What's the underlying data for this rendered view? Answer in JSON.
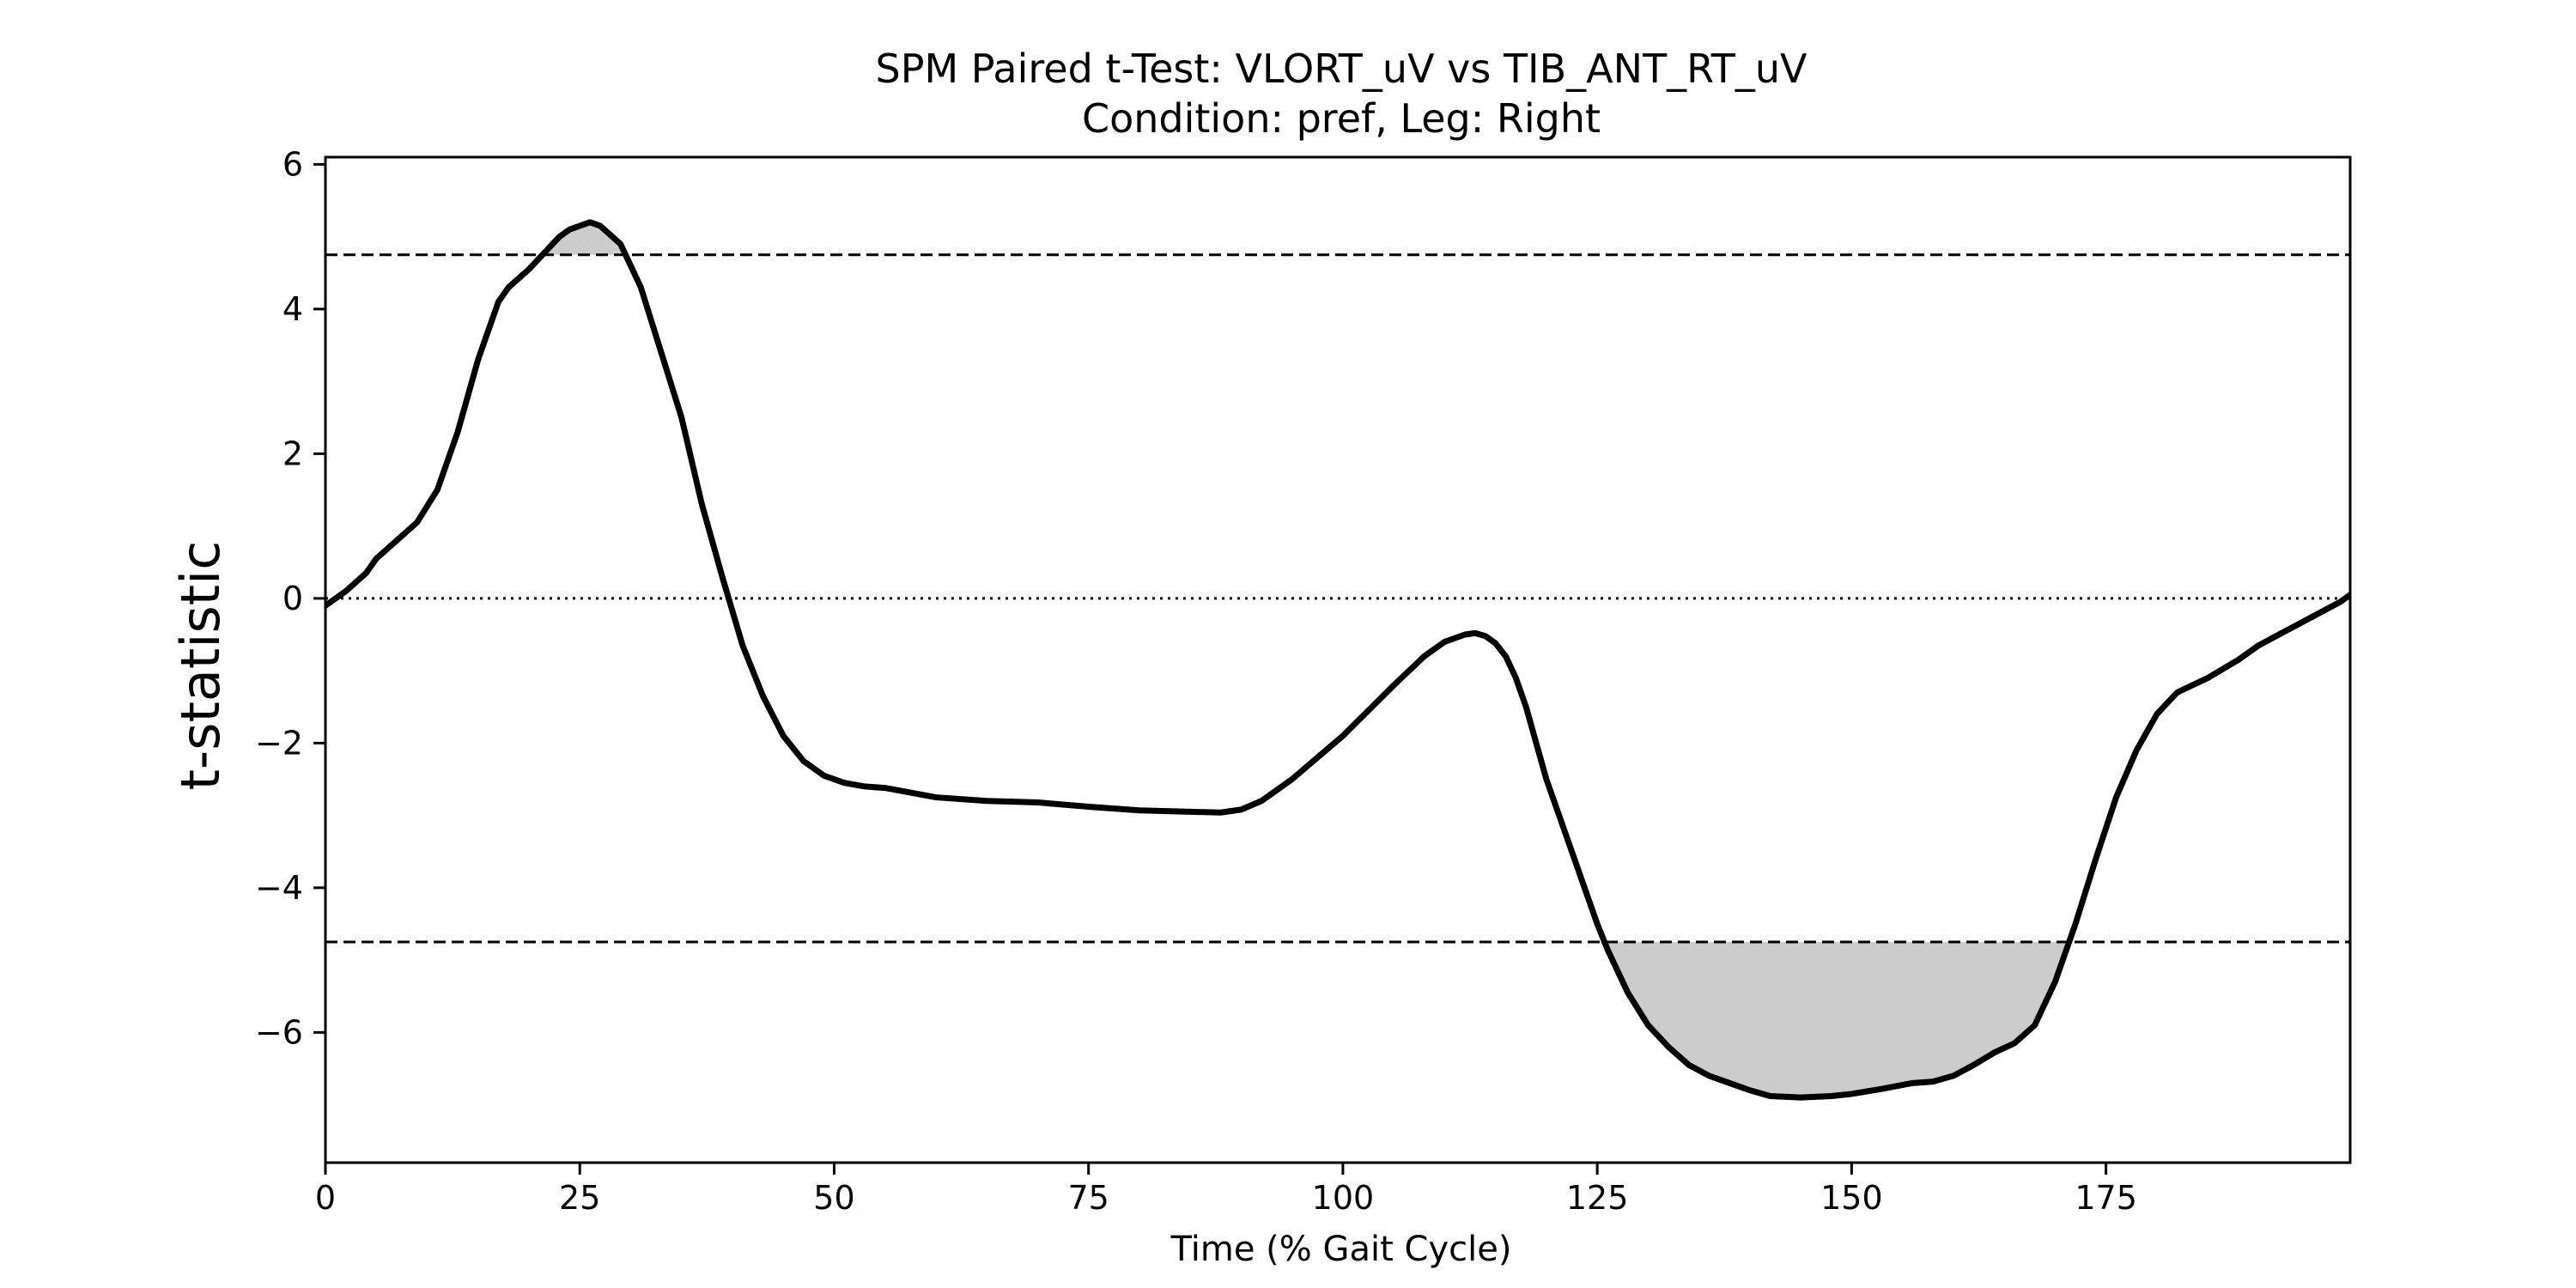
{
  "chart_data": {
    "type": "line",
    "title": "SPM Paired t-Test: VLORT_uV vs TIB_ANT_RT_uV",
    "subtitle": "Condition: pref, Leg: Right",
    "xlabel": "Time (% Gait Cycle)",
    "ylabel": "t-statistic",
    "xlim": [
      0,
      199
    ],
    "ylim": [
      -7.8,
      6.1
    ],
    "xticks": [
      0,
      25,
      50,
      75,
      100,
      125,
      150,
      175
    ],
    "xtick_labels": [
      "0",
      "25",
      "50",
      "75",
      "100",
      "125",
      "150",
      "175"
    ],
    "yticks": [
      6,
      4,
      2,
      0,
      -2,
      -4,
      -6
    ],
    "ytick_labels": [
      "6",
      "4",
      "2",
      "0",
      "−2",
      "−4",
      "−6"
    ],
    "grid": false,
    "threshold": 4.75,
    "zero_line": 0,
    "series_color": "#000000",
    "fill_color": "#cccccc",
    "series": [
      {
        "x": [
          0,
          2,
          4,
          5,
          7,
          9,
          11,
          13,
          15,
          17,
          18,
          20,
          21,
          23,
          24,
          26,
          27,
          29,
          31,
          33,
          35,
          37,
          39,
          41,
          43,
          45,
          47,
          49,
          51,
          53,
          55,
          60,
          65,
          70,
          75,
          80,
          85,
          88,
          90,
          92,
          95,
          100,
          105,
          108,
          110,
          112,
          113,
          114,
          115,
          116,
          117,
          118,
          119,
          120,
          122,
          124,
          125,
          126,
          128,
          130,
          132,
          134,
          136,
          138,
          140,
          142,
          145,
          148,
          150,
          153,
          156,
          158,
          160,
          162,
          164,
          166,
          168,
          169,
          170,
          172,
          174,
          176,
          178,
          180,
          182,
          185,
          188,
          190,
          192,
          194,
          196,
          198,
          199
        ],
        "y": [
          -0.1,
          0.1,
          0.35,
          0.55,
          0.8,
          1.05,
          1.5,
          2.3,
          3.3,
          4.1,
          4.3,
          4.55,
          4.7,
          5.0,
          5.1,
          5.2,
          5.15,
          4.9,
          4.3,
          3.4,
          2.5,
          1.3,
          0.3,
          -0.65,
          -1.35,
          -1.9,
          -2.25,
          -2.45,
          -2.55,
          -2.6,
          -2.62,
          -2.75,
          -2.8,
          -2.82,
          -2.88,
          -2.93,
          -2.95,
          -2.96,
          -2.92,
          -2.8,
          -2.5,
          -1.9,
          -1.2,
          -0.8,
          -0.6,
          -0.5,
          -0.48,
          -0.52,
          -0.62,
          -0.8,
          -1.1,
          -1.5,
          -2.0,
          -2.5,
          -3.3,
          -4.1,
          -4.5,
          -4.85,
          -5.45,
          -5.9,
          -6.2,
          -6.45,
          -6.6,
          -6.7,
          -6.8,
          -6.88,
          -6.9,
          -6.88,
          -6.85,
          -6.78,
          -6.7,
          -6.68,
          -6.6,
          -6.45,
          -6.28,
          -6.15,
          -5.9,
          -5.6,
          -5.3,
          -4.5,
          -3.6,
          -2.75,
          -2.1,
          -1.6,
          -1.3,
          -1.1,
          -0.85,
          -0.65,
          -0.5,
          -0.35,
          -0.2,
          -0.05,
          0.05
        ]
      }
    ]
  }
}
